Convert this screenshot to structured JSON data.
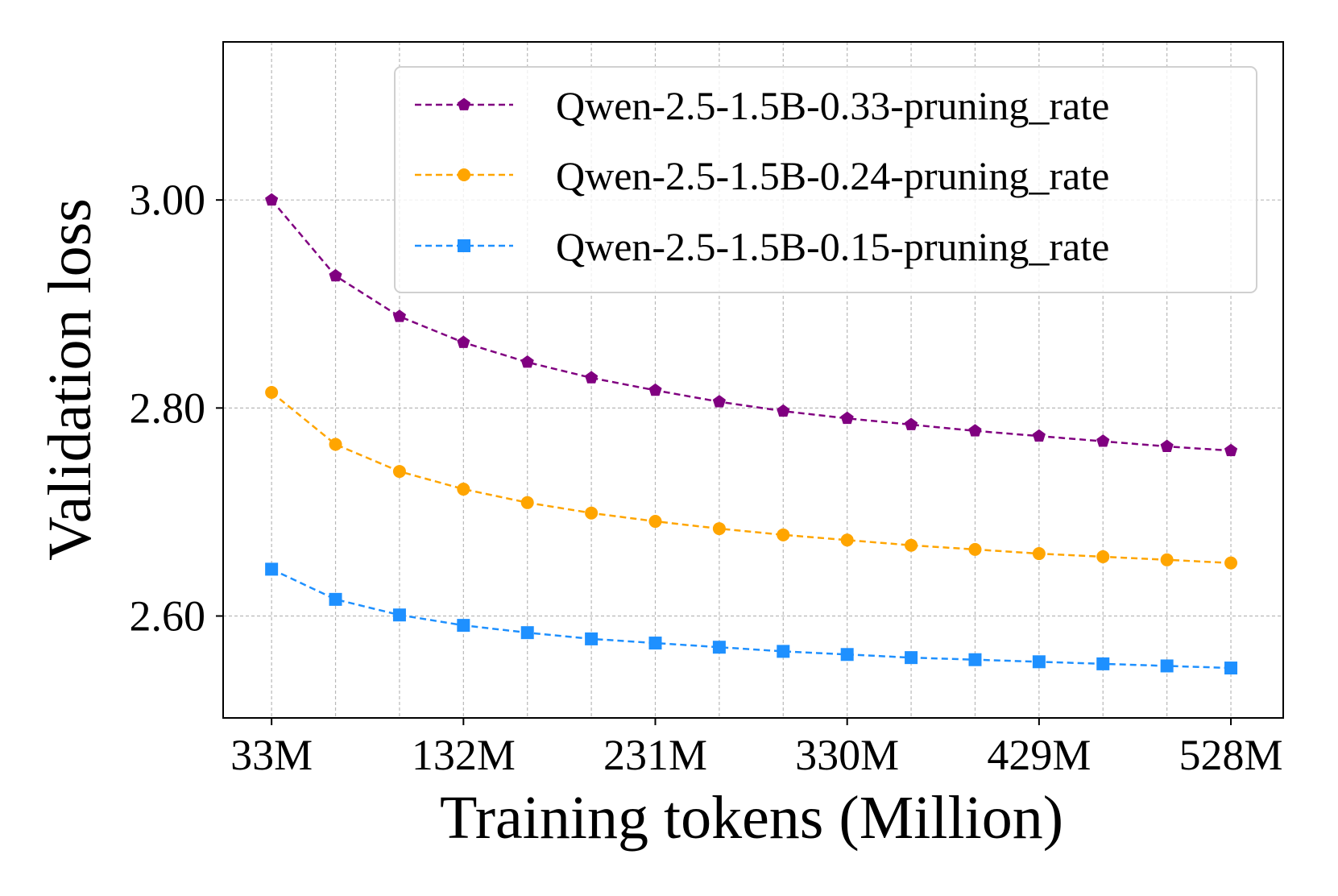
{
  "chart_data": {
    "type": "line",
    "title": "",
    "xlabel": "Training tokens (Million)",
    "ylabel": "Validation loss",
    "x": [
      33,
      66,
      99,
      132,
      165,
      198,
      231,
      264,
      297,
      330,
      363,
      396,
      429,
      462,
      495,
      528
    ],
    "xlim": [
      8,
      555
    ],
    "ylim": [
      2.502,
      3.152
    ],
    "x_ticks": [
      33,
      132,
      231,
      330,
      429,
      528
    ],
    "x_tick_labels": [
      "33M",
      "132M",
      "231M",
      "330M",
      "429M",
      "528M"
    ],
    "y_ticks": [
      2.6,
      2.8,
      3.0
    ],
    "y_tick_labels": [
      "2.60",
      "2.80",
      "3.00"
    ],
    "grid": true,
    "grid_x": [
      33,
      66,
      99,
      132,
      165,
      198,
      231,
      264,
      297,
      330,
      363,
      396,
      429,
      462,
      495,
      528
    ],
    "legend_position": "top-right",
    "series": [
      {
        "name": "Qwen-2.5-1.5B-0.33-pruning_rate",
        "color": "#800080",
        "marker": "pentagon",
        "linestyle": "dashed",
        "values": [
          3.0,
          2.927,
          2.888,
          2.863,
          2.844,
          2.829,
          2.817,
          2.806,
          2.797,
          2.79,
          2.784,
          2.778,
          2.773,
          2.768,
          2.763,
          2.759
        ]
      },
      {
        "name": "Qwen-2.5-1.5B-0.24-pruning_rate",
        "color": "#FFA500",
        "marker": "circle",
        "linestyle": "dashed",
        "values": [
          2.815,
          2.765,
          2.739,
          2.722,
          2.709,
          2.699,
          2.691,
          2.684,
          2.678,
          2.673,
          2.668,
          2.664,
          2.66,
          2.657,
          2.654,
          2.651
        ]
      },
      {
        "name": "Qwen-2.5-1.5B-0.15-pruning_rate",
        "color": "#1E90FF",
        "marker": "square",
        "linestyle": "dashed",
        "values": [
          2.645,
          2.616,
          2.601,
          2.591,
          2.584,
          2.578,
          2.574,
          2.57,
          2.566,
          2.563,
          2.56,
          2.558,
          2.556,
          2.554,
          2.552,
          2.55
        ]
      }
    ]
  }
}
